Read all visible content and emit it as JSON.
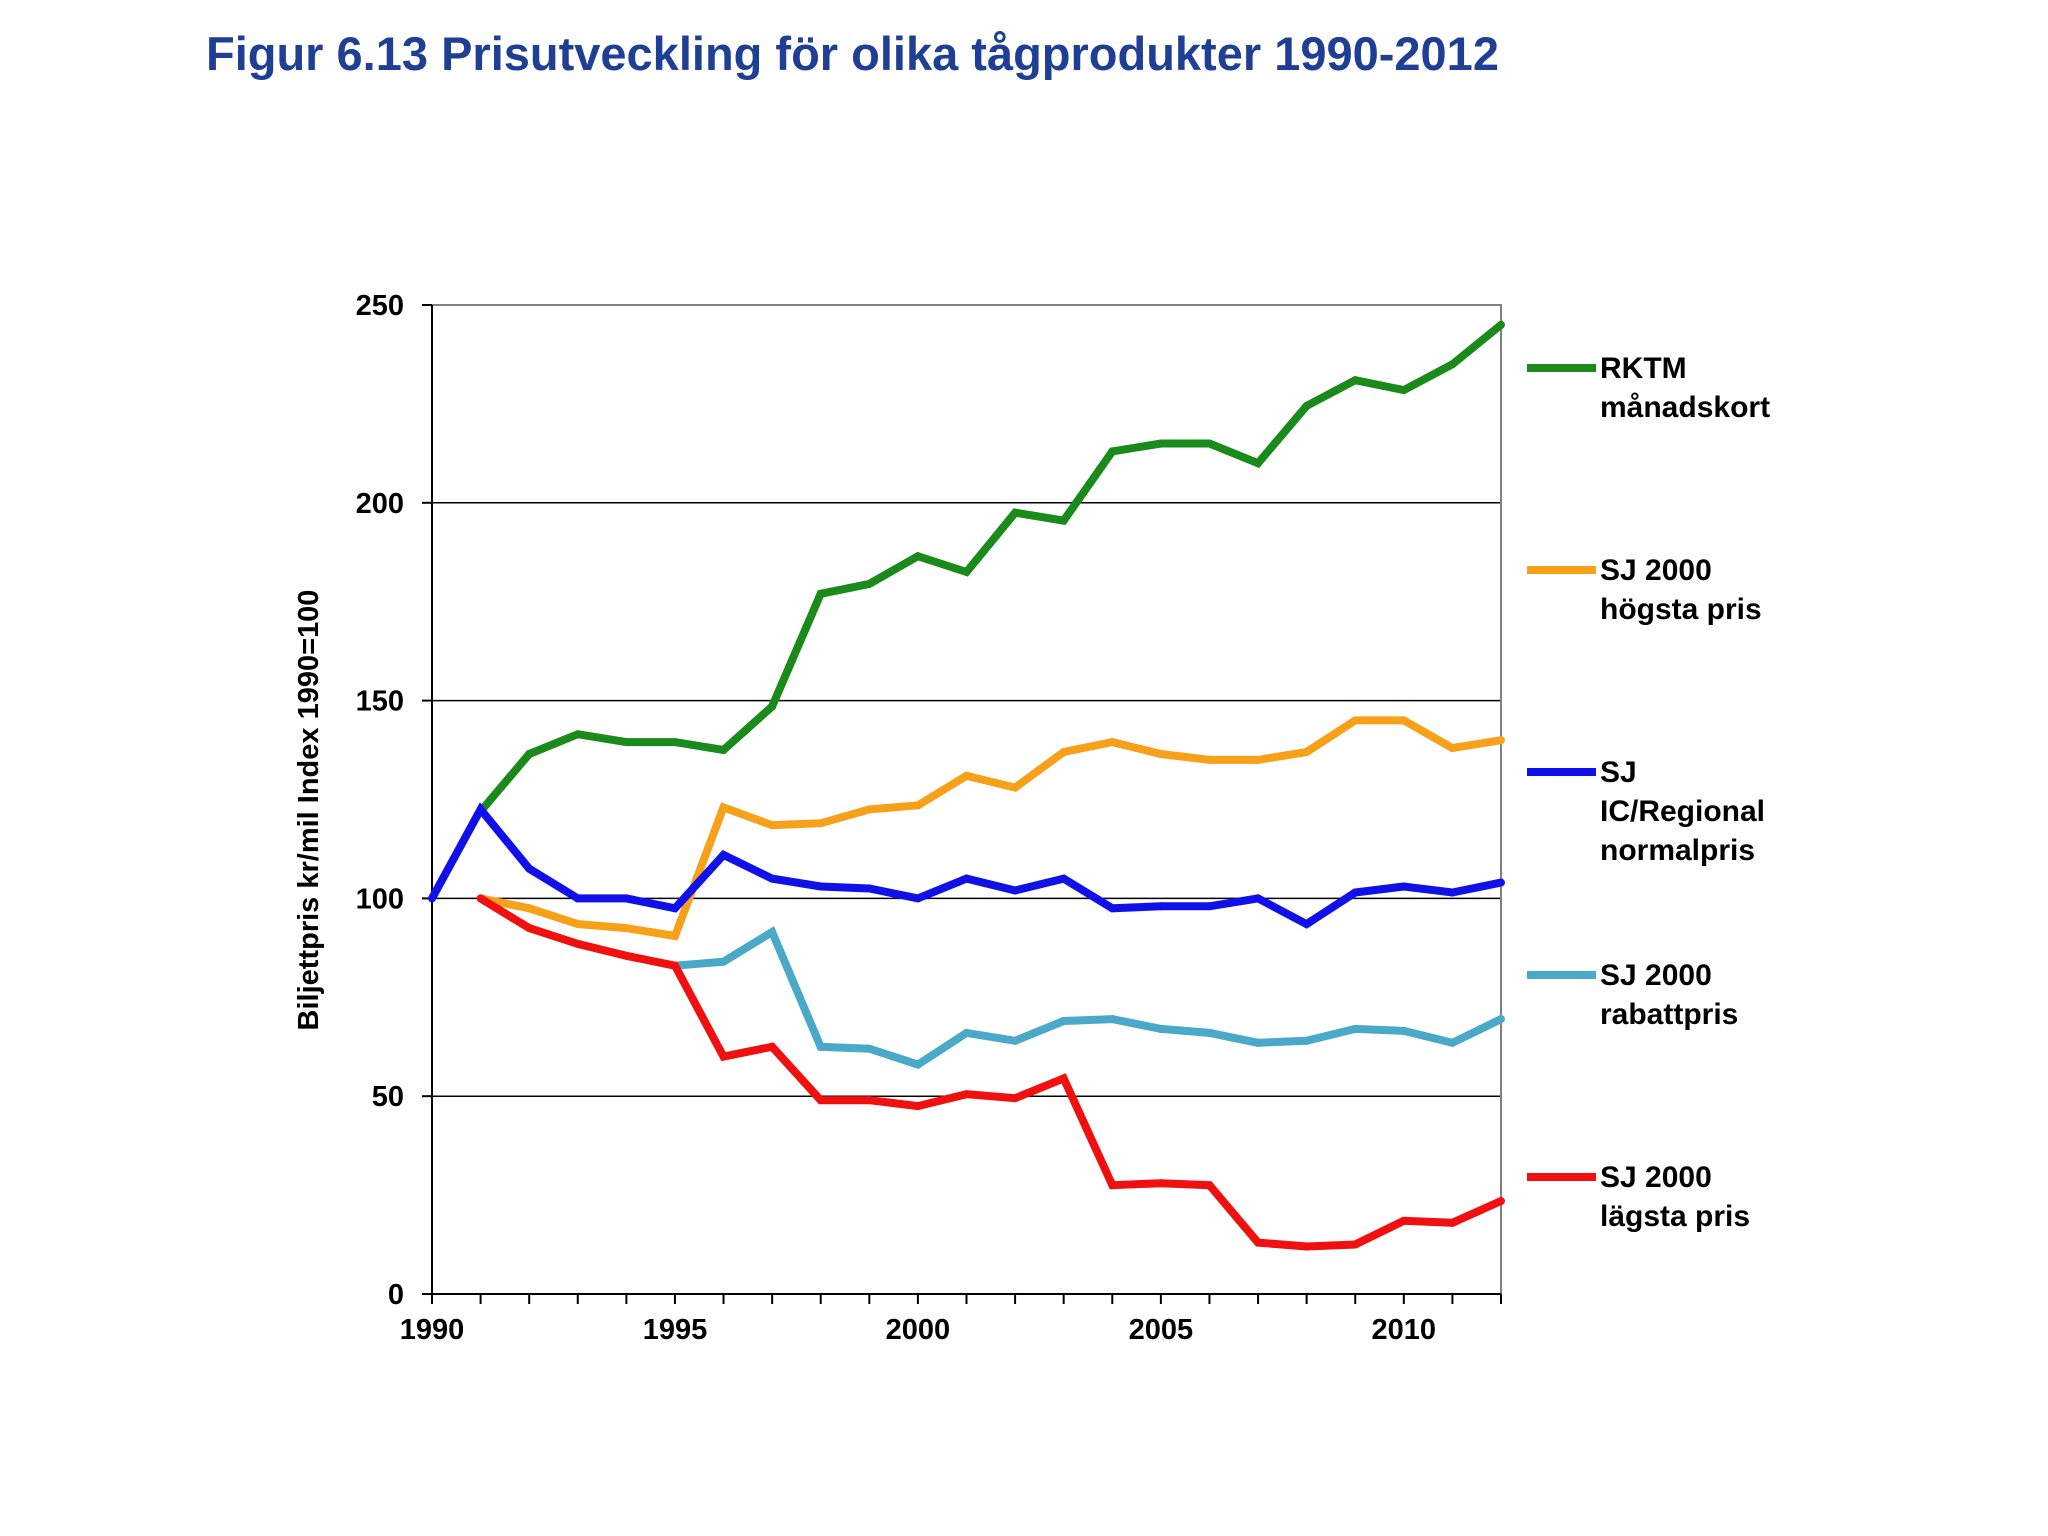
{
  "title": "Figur 6.13 Prisutveckling för olika tågprodukter 1990-2012",
  "chart_data": {
    "type": "line",
    "title": "Figur 6.13 Prisutveckling för olika tågprodukter 1990-2012",
    "xlabel": "",
    "ylabel": "Biljettpris kr/mil Index 1990=100",
    "xlim": [
      1990,
      2012
    ],
    "ylim": [
      0,
      250
    ],
    "x_ticks": [
      1990,
      1995,
      2000,
      2005,
      2010
    ],
    "y_ticks": [
      0,
      50,
      100,
      150,
      200,
      250
    ],
    "grid": "horizontal",
    "legend_position": "right",
    "series": [
      {
        "name": "RKTM månadskort",
        "legend_lines": [
          "RKTM",
          "månadskort"
        ],
        "color": "#1a8a1a",
        "x": [
          1991,
          1992,
          1993,
          1994,
          1995,
          1996,
          1997,
          1998,
          1999,
          2000,
          2001,
          2002,
          2003,
          2004,
          2005,
          2006,
          2007,
          2008,
          2009,
          2010,
          2011,
          2012
        ],
        "values": [
          122,
          136.5,
          141.5,
          139.5,
          139.5,
          137.5,
          148.5,
          177,
          179.5,
          186.5,
          182.5,
          197.5,
          195.5,
          213,
          215,
          215,
          210,
          224.5,
          231,
          228.5,
          235,
          245
        ]
      },
      {
        "name": "SJ 2000 högsta pris",
        "legend_lines": [
          "SJ 2000",
          "högsta pris"
        ],
        "color": "#f7a11a",
        "x": [
          1991,
          1992,
          1993,
          1994,
          1995,
          1996,
          1997,
          1998,
          1999,
          2000,
          2001,
          2002,
          2003,
          2004,
          2005,
          2006,
          2007,
          2008,
          2009,
          2010,
          2011,
          2012
        ],
        "values": [
          100,
          97.5,
          93.5,
          92.5,
          90.5,
          123,
          118.5,
          119,
          122.5,
          123.5,
          131,
          128,
          137,
          139.5,
          136.5,
          135,
          135,
          137,
          145,
          145,
          138,
          140
        ]
      },
      {
        "name": "SJ IC/Regional normalpris",
        "legend_lines": [
          "SJ",
          "IC/Regional",
          "normalpris"
        ],
        "color": "#1010e8",
        "x": [
          1990,
          1991,
          1992,
          1993,
          1994,
          1995,
          1996,
          1997,
          1998,
          1999,
          2000,
          2001,
          2002,
          2003,
          2004,
          2005,
          2006,
          2007,
          2008,
          2009,
          2010,
          2011,
          2012
        ],
        "values": [
          100,
          122.5,
          107.5,
          100,
          100,
          97.5,
          111,
          105,
          103,
          102.5,
          100,
          105,
          102,
          105,
          97.5,
          98,
          98,
          100,
          93.5,
          101.5,
          103,
          101.5,
          104
        ]
      },
      {
        "name": "SJ 2000 rabattpris",
        "legend_lines": [
          "SJ 2000",
          "rabattpris"
        ],
        "color": "#4aa8c8",
        "x": [
          1995,
          1996,
          1997,
          1998,
          1999,
          2000,
          2001,
          2002,
          2003,
          2004,
          2005,
          2006,
          2007,
          2008,
          2009,
          2010,
          2011,
          2012
        ],
        "values": [
          83,
          84,
          91.5,
          62.5,
          62,
          58,
          66,
          64,
          69,
          69.5,
          67,
          66,
          63.5,
          64,
          67,
          66.5,
          63.5,
          69.5
        ]
      },
      {
        "name": "SJ 2000 lägsta pris",
        "legend_lines": [
          "SJ 2000",
          "lägsta pris"
        ],
        "color": "#f01010",
        "x": [
          1991,
          1992,
          1993,
          1994,
          1995,
          1996,
          1997,
          1998,
          1999,
          2000,
          2001,
          2002,
          2003,
          2004,
          2005,
          2006,
          2007,
          2008,
          2009,
          2010,
          2011,
          2012
        ],
        "values": [
          100,
          92.5,
          88.5,
          85.5,
          83,
          60,
          62.5,
          49,
          49,
          47.5,
          50.5,
          49.5,
          54.5,
          27.5,
          28,
          27.5,
          13,
          12,
          12.5,
          18.5,
          18,
          23.5
        ]
      }
    ]
  }
}
